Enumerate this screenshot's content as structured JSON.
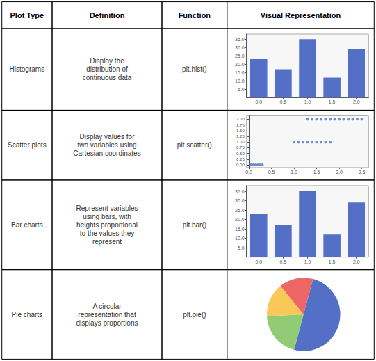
{
  "table": {
    "header": [
      "Plot Type",
      "Definition",
      "Function",
      "Visual Representation"
    ],
    "rows": [
      {
        "plot_type": "Histograms",
        "definition": "Display the\ndistribution of\ncontinuous data",
        "function": "plt.hist()"
      },
      {
        "plot_type": "Scatter plots",
        "definition": "Display values for\ntwo variables using\nCartesian coordinates",
        "function": "plt.scatter()"
      },
      {
        "plot_type": "Bar charts",
        "definition": "Represent variables\nusing bars, with\nheights proportional\nto the values they\nrepresent",
        "function": "plt.bar()"
      },
      {
        "plot_type": "Pie charts",
        "definition": "A circular\nrepresentation that\ndisplays proportions",
        "function": "plt.pie()"
      }
    ]
  },
  "chart_data": [
    {
      "type": "bar",
      "categories": [
        "0.0",
        "0.5",
        "1.0",
        "1.5",
        "2.0"
      ],
      "values": [
        23,
        17,
        35,
        12,
        29
      ],
      "ylim": [
        0,
        38
      ],
      "yticks": [
        {
          "value": 5,
          "label": "5.0"
        },
        {
          "value": 10,
          "label": "10.0"
        },
        {
          "value": 15,
          "label": "15.0"
        },
        {
          "value": 20,
          "label": "20.0"
        },
        {
          "value": 25,
          "label": "25.0"
        },
        {
          "value": 30,
          "label": "30.0"
        },
        {
          "value": 35,
          "label": "35.0"
        }
      ],
      "grid": false
    },
    {
      "type": "scatter",
      "series": [
        {
          "x": [
            0.05,
            0.1,
            0.15,
            0.2,
            0.25,
            0.3
          ],
          "y": [
            0.0,
            0.0,
            0.0,
            0.0,
            0.0,
            0.0
          ]
        },
        {
          "x": [
            1.0,
            1.1,
            1.2,
            1.3,
            1.4,
            1.5,
            1.6,
            1.7,
            1.8
          ],
          "y": [
            1.0,
            1.0,
            1.0,
            1.0,
            1.0,
            1.0,
            1.0,
            1.0,
            1.0
          ]
        },
        {
          "x": [
            1.3,
            1.4,
            1.5,
            1.6,
            1.7,
            1.8,
            1.9,
            2.0,
            2.1,
            2.2,
            2.3,
            2.4,
            2.5
          ],
          "y": [
            2.0,
            2.0,
            2.0,
            2.0,
            2.0,
            2.0,
            2.0,
            2.0,
            2.0,
            2.0,
            2.0,
            2.0,
            2.0
          ]
        }
      ],
      "xlim": [
        -0.05,
        2.65
      ],
      "xticks": [
        {
          "value": 0.0,
          "label": "0.0"
        },
        {
          "value": 0.5,
          "label": "0.5"
        },
        {
          "value": 1.0,
          "label": "1.0"
        },
        {
          "value": 1.5,
          "label": "1.5"
        },
        {
          "value": 2.0,
          "label": "2.0"
        },
        {
          "value": 2.5,
          "label": "2.5"
        }
      ],
      "ylim": [
        -0.12,
        2.15
      ],
      "yticks": [
        {
          "value": 0.0,
          "label": "0.00"
        },
        {
          "value": 0.25,
          "label": "0.25"
        },
        {
          "value": 0.5,
          "label": "0.50"
        },
        {
          "value": 0.75,
          "label": "0.75"
        },
        {
          "value": 1.0,
          "label": "1.00"
        },
        {
          "value": 1.25,
          "label": "1.25"
        },
        {
          "value": 1.5,
          "label": "1.50"
        },
        {
          "value": 1.75,
          "label": "1.75"
        },
        {
          "value": 2.0,
          "label": "2.00"
        }
      ],
      "grid": false
    },
    {
      "type": "bar",
      "categories": [
        "0.0",
        "0.5",
        "1.0",
        "1.5",
        "2.0"
      ],
      "values": [
        23,
        17,
        35,
        12,
        29
      ],
      "ylim": [
        0,
        38
      ],
      "yticks": [
        {
          "value": 5,
          "label": "5.0"
        },
        {
          "value": 10,
          "label": "10.0"
        },
        {
          "value": 15,
          "label": "15.0"
        },
        {
          "value": 20,
          "label": "20.0"
        },
        {
          "value": 25,
          "label": "25.0"
        },
        {
          "value": 30,
          "label": "30.0"
        },
        {
          "value": 35,
          "label": "35.0"
        }
      ],
      "grid": false
    },
    {
      "type": "pie",
      "values": [
        50,
        20,
        15,
        15
      ]
    }
  ]
}
